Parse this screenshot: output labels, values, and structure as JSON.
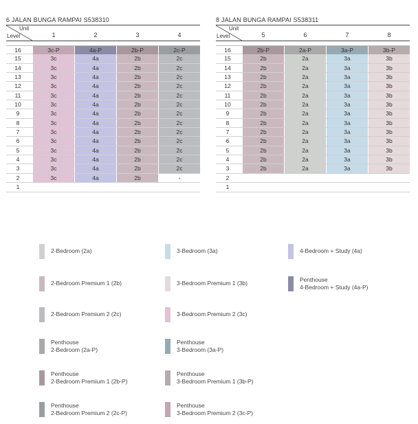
{
  "colors": {
    "2a": "#cfd1cf",
    "2b": "#c9b9be",
    "2c": "#bbbcc0",
    "3a": "#c6dbe8",
    "3b": "#e5d9db",
    "3c": "#e0c3d4",
    "4a": "#c3c3e3",
    "4a-P": "#8c8ba6",
    "2a-P": "#a9a9a9",
    "3a-P": "#97a9b3",
    "2b-P": "#a8989d",
    "3b-P": "#b6abad",
    "2c-P": "#9a9d9f",
    "3c-P": "#c1a6b3",
    "-": "#ffffff"
  },
  "header": {
    "unit": "Unit",
    "level": "Level"
  },
  "blocks": [
    {
      "title": "6 JALAN BUNGA RAMPAI S538310",
      "units": [
        "1",
        "2",
        "3",
        "4"
      ],
      "rows": [
        {
          "level": "16",
          "cells": [
            "3c-P",
            "4a-P",
            "2b-P",
            "2c-P"
          ]
        },
        {
          "level": "15",
          "cells": [
            "3c",
            "4a",
            "2b",
            "2c"
          ]
        },
        {
          "level": "14",
          "cells": [
            "3c",
            "4a",
            "2b",
            "2c"
          ]
        },
        {
          "level": "13",
          "cells": [
            "3c",
            "4a",
            "2b",
            "2c"
          ]
        },
        {
          "level": "12",
          "cells": [
            "3c",
            "4a",
            "2b",
            "2c"
          ]
        },
        {
          "level": "11",
          "cells": [
            "3c",
            "4a",
            "2b",
            "2c"
          ]
        },
        {
          "level": "10",
          "cells": [
            "3c",
            "4a",
            "2b",
            "2c"
          ]
        },
        {
          "level": "9",
          "cells": [
            "3c",
            "4a",
            "2b",
            "2c"
          ]
        },
        {
          "level": "8",
          "cells": [
            "3c",
            "4a",
            "2b",
            "2c"
          ]
        },
        {
          "level": "7",
          "cells": [
            "3c",
            "4a",
            "2b",
            "2c"
          ]
        },
        {
          "level": "6",
          "cells": [
            "3c",
            "4a",
            "2b",
            "2c"
          ]
        },
        {
          "level": "5",
          "cells": [
            "3c",
            "4a",
            "2b",
            "2c"
          ]
        },
        {
          "level": "4",
          "cells": [
            "3c",
            "4a",
            "2b",
            "2c"
          ]
        },
        {
          "level": "3",
          "cells": [
            "3c",
            "4a",
            "2b",
            "2c"
          ]
        },
        {
          "level": "2",
          "cells": [
            "3c",
            "4a",
            "2b",
            "-"
          ]
        },
        {
          "level": "1",
          "cells": [
            "",
            "",
            "",
            ""
          ]
        }
      ]
    },
    {
      "title": "8 JALAN BUNGA RAMPAI S538311",
      "units": [
        "5",
        "6",
        "7",
        "8"
      ],
      "rows": [
        {
          "level": "16",
          "cells": [
            "2b-P",
            "2a-P",
            "3a-P",
            "3b-P"
          ]
        },
        {
          "level": "15",
          "cells": [
            "2b",
            "2a",
            "3a",
            "3b"
          ]
        },
        {
          "level": "14",
          "cells": [
            "2b",
            "2a",
            "3a",
            "3b"
          ]
        },
        {
          "level": "13",
          "cells": [
            "2b",
            "2a",
            "3a",
            "3b"
          ]
        },
        {
          "level": "12",
          "cells": [
            "2b",
            "2a",
            "3a",
            "3b"
          ]
        },
        {
          "level": "11",
          "cells": [
            "2b",
            "2a",
            "3a",
            "3b"
          ]
        },
        {
          "level": "10",
          "cells": [
            "2b",
            "2a",
            "3a",
            "3b"
          ]
        },
        {
          "level": "9",
          "cells": [
            "2b",
            "2a",
            "3a",
            "3b"
          ]
        },
        {
          "level": "8",
          "cells": [
            "2b",
            "2a",
            "3a",
            "3b"
          ]
        },
        {
          "level": "7",
          "cells": [
            "2b",
            "2a",
            "3a",
            "3b"
          ]
        },
        {
          "level": "6",
          "cells": [
            "2b",
            "2a",
            "3a",
            "3b"
          ]
        },
        {
          "level": "5",
          "cells": [
            "2b",
            "2a",
            "3a",
            "3b"
          ]
        },
        {
          "level": "4",
          "cells": [
            "2b",
            "2a",
            "3a",
            "3b"
          ]
        },
        {
          "level": "3",
          "cells": [
            "2b",
            "2a",
            "3a",
            "3b"
          ]
        },
        {
          "level": "2",
          "cells": [
            "",
            "",
            "",
            ""
          ]
        },
        {
          "level": "1",
          "cells": [
            "",
            "",
            "",
            ""
          ]
        }
      ]
    }
  ],
  "legend": [
    {
      "key": "2a",
      "label": "2-Bedroom (2a)"
    },
    {
      "key": "3a",
      "label": "3-Bedroom (3a)"
    },
    {
      "key": "4a",
      "label": "4-Bedroom + Study (4a)"
    },
    {
      "key": "2b",
      "label": "2-Bedroom Premium 1 (2b)"
    },
    {
      "key": "3b",
      "label": "3-Bedroom Premium 1 (3b)"
    },
    {
      "key": "4a-P",
      "label": "Penthouse\n4-Bedroom + Study (4a-P)"
    },
    {
      "key": "2c",
      "label": "2-Bedroom Premium 2 (2c)"
    },
    {
      "key": "3c",
      "label": "3-Bedroom Premium 2 (3c)"
    },
    {
      "key": "2a-P",
      "label": "Penthouse\n2-Bedroom (2a-P)"
    },
    {
      "key": "3a-P",
      "label": "Penthouse\n3-Bedroom (3a-P)"
    },
    {
      "key": "2b-P",
      "label": "Penthouse\n2-Bedroom Premium 1 (2b-P)"
    },
    {
      "key": "3b-P",
      "label": "Penthouse\n3-Bedroom Premium 1 (3b-P)"
    },
    {
      "key": "2c-P",
      "label": "Penthouse\n2-Bedroom Premium 2 (2c-P)"
    },
    {
      "key": "3c-P",
      "label": "Penthouse\n3-Bedroom Premium 2 (3c-P)"
    }
  ]
}
